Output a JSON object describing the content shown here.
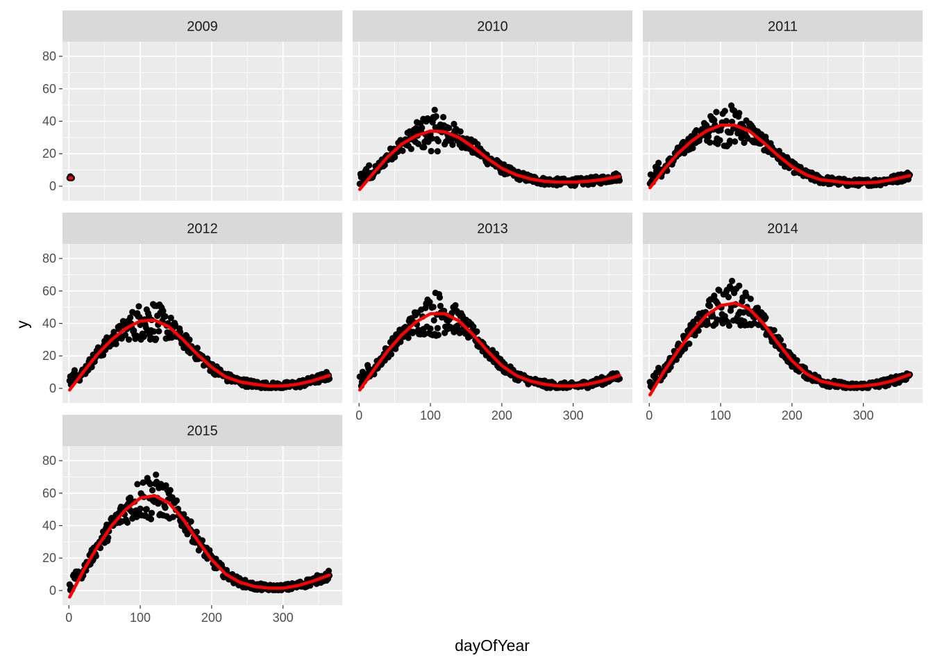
{
  "chart_data": {
    "type": "scatter",
    "facet_by": "year",
    "xlabel": "dayOfYear",
    "ylabel": "y",
    "xlim": [
      -9,
      383
    ],
    "ylim": [
      -9,
      89
    ],
    "x_ticks": [
      0,
      100,
      200,
      300
    ],
    "y_ticks": [
      0,
      20,
      40,
      60,
      80
    ],
    "x_tick_labels": [
      "0",
      "100",
      "200",
      "300"
    ],
    "y_tick_labels": [
      "0",
      "20",
      "40",
      "60",
      "80"
    ],
    "grid": true,
    "legend": "none",
    "colors": {
      "points": "#000000",
      "fit_line": "#ff0000",
      "panel_background": "#ebebeb",
      "strip_background": "#d9d9d9",
      "grid": "#ffffff"
    },
    "facets": [
      {
        "label": "2009",
        "points": [
          [
            1,
            5
          ],
          [
            2,
            6
          ],
          [
            3,
            5
          ],
          [
            4,
            5
          ]
        ],
        "fit": [
          [
            1,
            5
          ],
          [
            4,
            5
          ]
        ]
      },
      {
        "label": "2010",
        "peak_day": 105,
        "fit": [
          [
            1,
            -2
          ],
          [
            20,
            8
          ],
          [
            40,
            18
          ],
          [
            60,
            26
          ],
          [
            80,
            31
          ],
          [
            100,
            34
          ],
          [
            120,
            33.5
          ],
          [
            140,
            30
          ],
          [
            160,
            24
          ],
          [
            180,
            17
          ],
          [
            200,
            11
          ],
          [
            220,
            7
          ],
          [
            240,
            4.5
          ],
          [
            260,
            3
          ],
          [
            280,
            2.5
          ],
          [
            300,
            2.5
          ],
          [
            320,
            3
          ],
          [
            340,
            4
          ],
          [
            365,
            6
          ]
        ]
      },
      {
        "label": "2011",
        "peak_day": 110,
        "fit": [
          [
            1,
            -1
          ],
          [
            20,
            10
          ],
          [
            40,
            20
          ],
          [
            60,
            28
          ],
          [
            80,
            34
          ],
          [
            100,
            37.5
          ],
          [
            120,
            37.5
          ],
          [
            140,
            34
          ],
          [
            160,
            27
          ],
          [
            180,
            19
          ],
          [
            200,
            12
          ],
          [
            220,
            7
          ],
          [
            240,
            4
          ],
          [
            260,
            3
          ],
          [
            280,
            2
          ],
          [
            300,
            2
          ],
          [
            320,
            2.5
          ],
          [
            340,
            4
          ],
          [
            365,
            6.5
          ]
        ]
      },
      {
        "label": "2012",
        "peak_day": 112,
        "fit": [
          [
            1,
            -1
          ],
          [
            20,
            10
          ],
          [
            40,
            21
          ],
          [
            60,
            30
          ],
          [
            80,
            37
          ],
          [
            100,
            41.5
          ],
          [
            120,
            42
          ],
          [
            140,
            38
          ],
          [
            160,
            30
          ],
          [
            180,
            21
          ],
          [
            200,
            13
          ],
          [
            220,
            7
          ],
          [
            240,
            4
          ],
          [
            260,
            2.5
          ],
          [
            280,
            1.5
          ],
          [
            300,
            1.5
          ],
          [
            320,
            2.5
          ],
          [
            340,
            4.5
          ],
          [
            365,
            8
          ]
        ]
      },
      {
        "label": "2013",
        "peak_day": 108,
        "fit": [
          [
            1,
            -1
          ],
          [
            20,
            11
          ],
          [
            40,
            23
          ],
          [
            60,
            33
          ],
          [
            80,
            41
          ],
          [
            100,
            46
          ],
          [
            120,
            46
          ],
          [
            140,
            41.5
          ],
          [
            160,
            33
          ],
          [
            180,
            23
          ],
          [
            200,
            14
          ],
          [
            220,
            8
          ],
          [
            240,
            4.5
          ],
          [
            260,
            2.5
          ],
          [
            280,
            1.5
          ],
          [
            300,
            1.5
          ],
          [
            320,
            2.5
          ],
          [
            340,
            4.5
          ],
          [
            365,
            8
          ]
        ]
      },
      {
        "label": "2014",
        "peak_day": 115,
        "fit": [
          [
            1,
            -4
          ],
          [
            20,
            10
          ],
          [
            40,
            23
          ],
          [
            60,
            35
          ],
          [
            80,
            45
          ],
          [
            100,
            51
          ],
          [
            120,
            52.5
          ],
          [
            140,
            49
          ],
          [
            160,
            40
          ],
          [
            180,
            28
          ],
          [
            200,
            17
          ],
          [
            220,
            9
          ],
          [
            240,
            4.5
          ],
          [
            260,
            2.5
          ],
          [
            280,
            1
          ],
          [
            300,
            1.5
          ],
          [
            320,
            2.5
          ],
          [
            340,
            4.5
          ],
          [
            365,
            8.5
          ]
        ]
      },
      {
        "label": "2015",
        "peak_day": 112,
        "fit": [
          [
            1,
            -4
          ],
          [
            20,
            12
          ],
          [
            40,
            27
          ],
          [
            60,
            40
          ],
          [
            80,
            50
          ],
          [
            100,
            57
          ],
          [
            120,
            58.5
          ],
          [
            140,
            54
          ],
          [
            160,
            44
          ],
          [
            180,
            31
          ],
          [
            200,
            19
          ],
          [
            220,
            10
          ],
          [
            240,
            5
          ],
          [
            260,
            2.5
          ],
          [
            280,
            1.5
          ],
          [
            300,
            1.5
          ],
          [
            320,
            3
          ],
          [
            340,
            5.5
          ],
          [
            365,
            9.5
          ]
        ]
      }
    ]
  }
}
